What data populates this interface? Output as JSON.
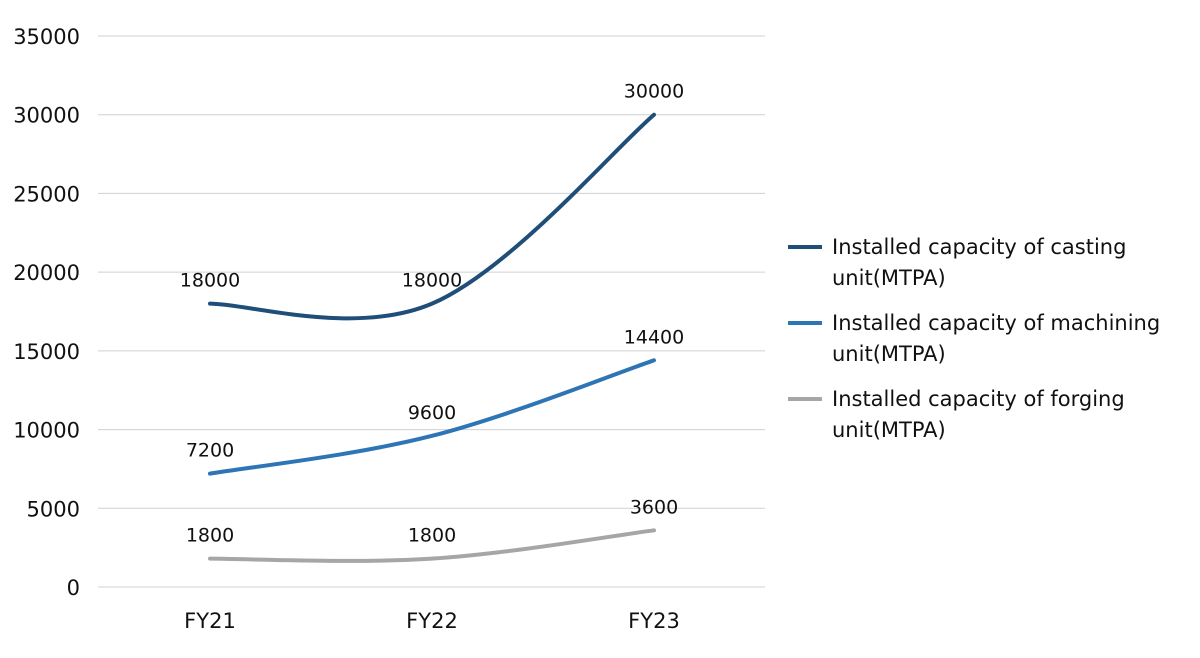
{
  "chart_data": {
    "type": "line",
    "categories": [
      "FY21",
      "FY22",
      "FY23"
    ],
    "ylim": [
      0,
      35000
    ],
    "yticks": [
      0,
      5000,
      10000,
      15000,
      20000,
      25000,
      30000,
      35000
    ],
    "grid": true,
    "legend_position": "right",
    "series": [
      {
        "name": "Installed capacity of casting unit(MTPA)",
        "values": [
          18000,
          18000,
          30000
        ],
        "color": "#1f4e79"
      },
      {
        "name": "Installed capacity of machining unit(MTPA)",
        "values": [
          7200,
          9600,
          14400
        ],
        "color": "#2e75b6"
      },
      {
        "name": "Installed capacity of forging unit(MTPA)",
        "values": [
          1800,
          1800,
          3600
        ],
        "color": "#a6a6a6"
      }
    ]
  }
}
